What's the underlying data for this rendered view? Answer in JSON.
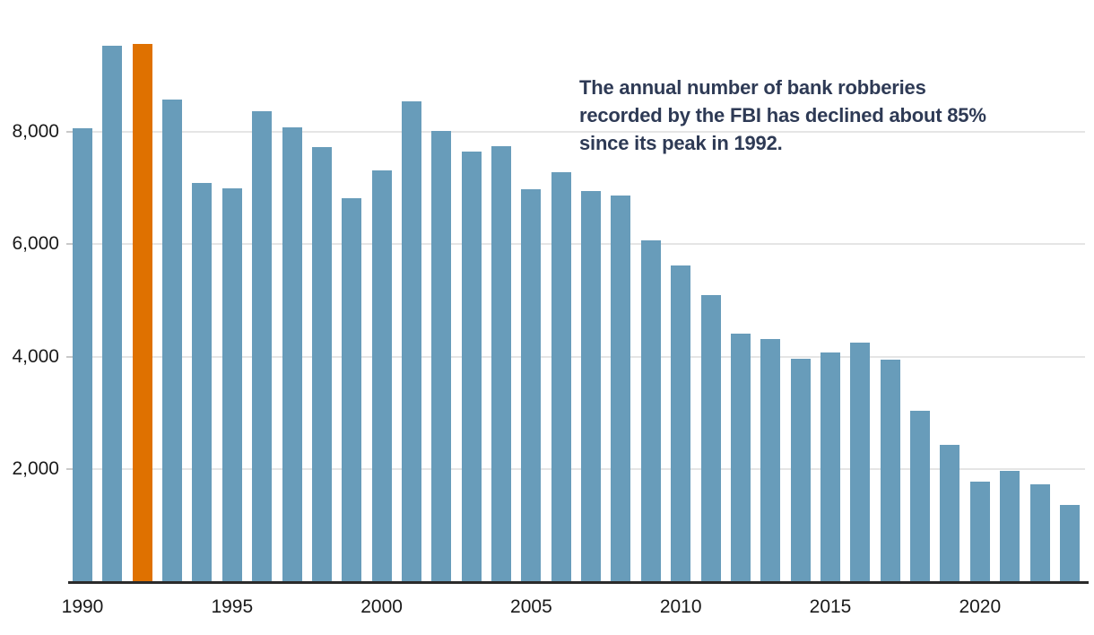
{
  "chart_data": {
    "type": "bar",
    "title": "",
    "annotation": "The annual number of bank robberies\nrecorded by the FBI has declined about 85%\nsince its peak in 1992.",
    "categories": [
      1990,
      1991,
      1992,
      1993,
      1994,
      1995,
      1996,
      1997,
      1998,
      1999,
      2000,
      2001,
      2002,
      2003,
      2004,
      2005,
      2006,
      2007,
      2008,
      2009,
      2010,
      2011,
      2012,
      2013,
      2014,
      2015,
      2016,
      2017,
      2018,
      2019,
      2020,
      2021,
      2022,
      2023
    ],
    "values": [
      8050,
      9530,
      9550,
      8570,
      7090,
      6990,
      8360,
      8080,
      7720,
      6810,
      7310,
      8530,
      8010,
      7650,
      7740,
      6970,
      7270,
      6950,
      6860,
      6060,
      5620,
      5090,
      4410,
      4310,
      3960,
      4080,
      4250,
      3950,
      3040,
      2430,
      1790,
      1970,
      1730,
      1370
    ],
    "highlight_category": 1992,
    "x_tick_labels": [
      "1990",
      "1995",
      "2000",
      "2005",
      "2010",
      "2015",
      "2020"
    ],
    "y_ticks": [
      {
        "value": 2000,
        "label": "2,000"
      },
      {
        "value": 4000,
        "label": "4,000"
      },
      {
        "value": 6000,
        "label": "6,000"
      },
      {
        "value": 8000,
        "label": "8,000"
      }
    ],
    "xlabel": "",
    "ylabel": "",
    "ylim": [
      0,
      10300
    ],
    "grid": "horizontal",
    "legend": "none",
    "colors": {
      "bar": "#689cba",
      "highlight_bar": "#df7100",
      "annotation_text": "#2e3a55",
      "axis_line": "#2b2b2b",
      "gridline": "#e5e5e5",
      "tick_label": "#1a1a1a",
      "background": "#ffffff"
    }
  }
}
